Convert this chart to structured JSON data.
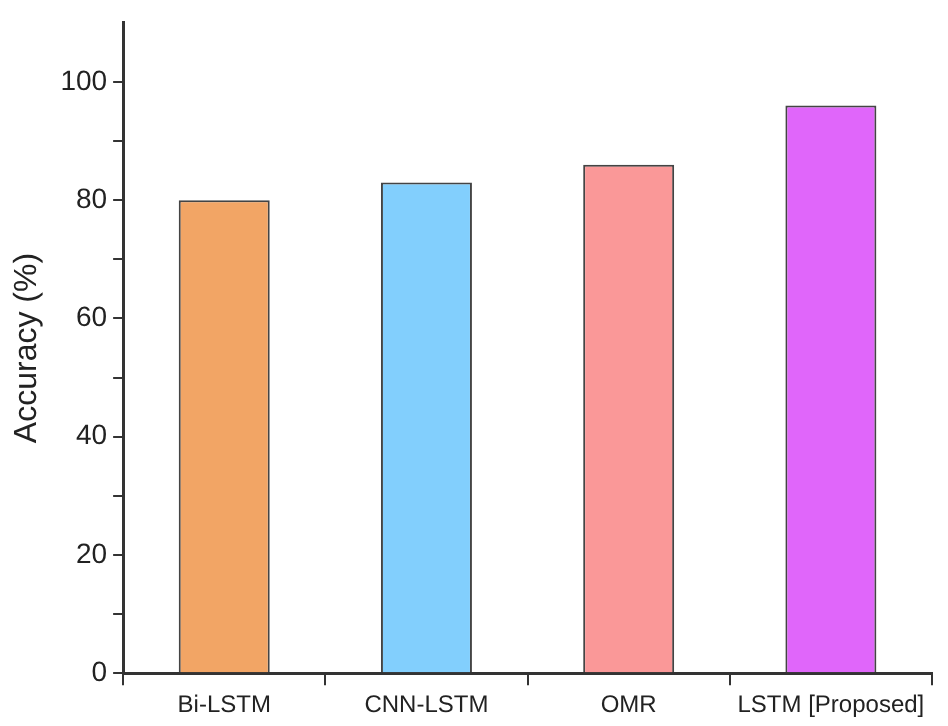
{
  "chart_data": {
    "type": "bar",
    "ylabel": "Accuracy (%)",
    "categories": [
      "Bi-LSTM",
      "CNN-LSTM",
      "OMR",
      "LSTM [Proposed]"
    ],
    "values": [
      80,
      83,
      86,
      96
    ],
    "colors": [
      "#f2a565",
      "#82cffd",
      "#fa9898",
      "#e066fa"
    ],
    "ylim": [
      0,
      110
    ],
    "yticks": [
      0,
      {
        "value": 10,
        "label": null
      },
      20,
      {
        "value": 30,
        "label": null
      },
      40,
      {
        "value": 50,
        "label": null
      },
      60,
      {
        "value": 70,
        "label": null
      },
      80,
      {
        "value": 90,
        "label": null
      },
      100
    ],
    "grid": false,
    "legend": false
  }
}
